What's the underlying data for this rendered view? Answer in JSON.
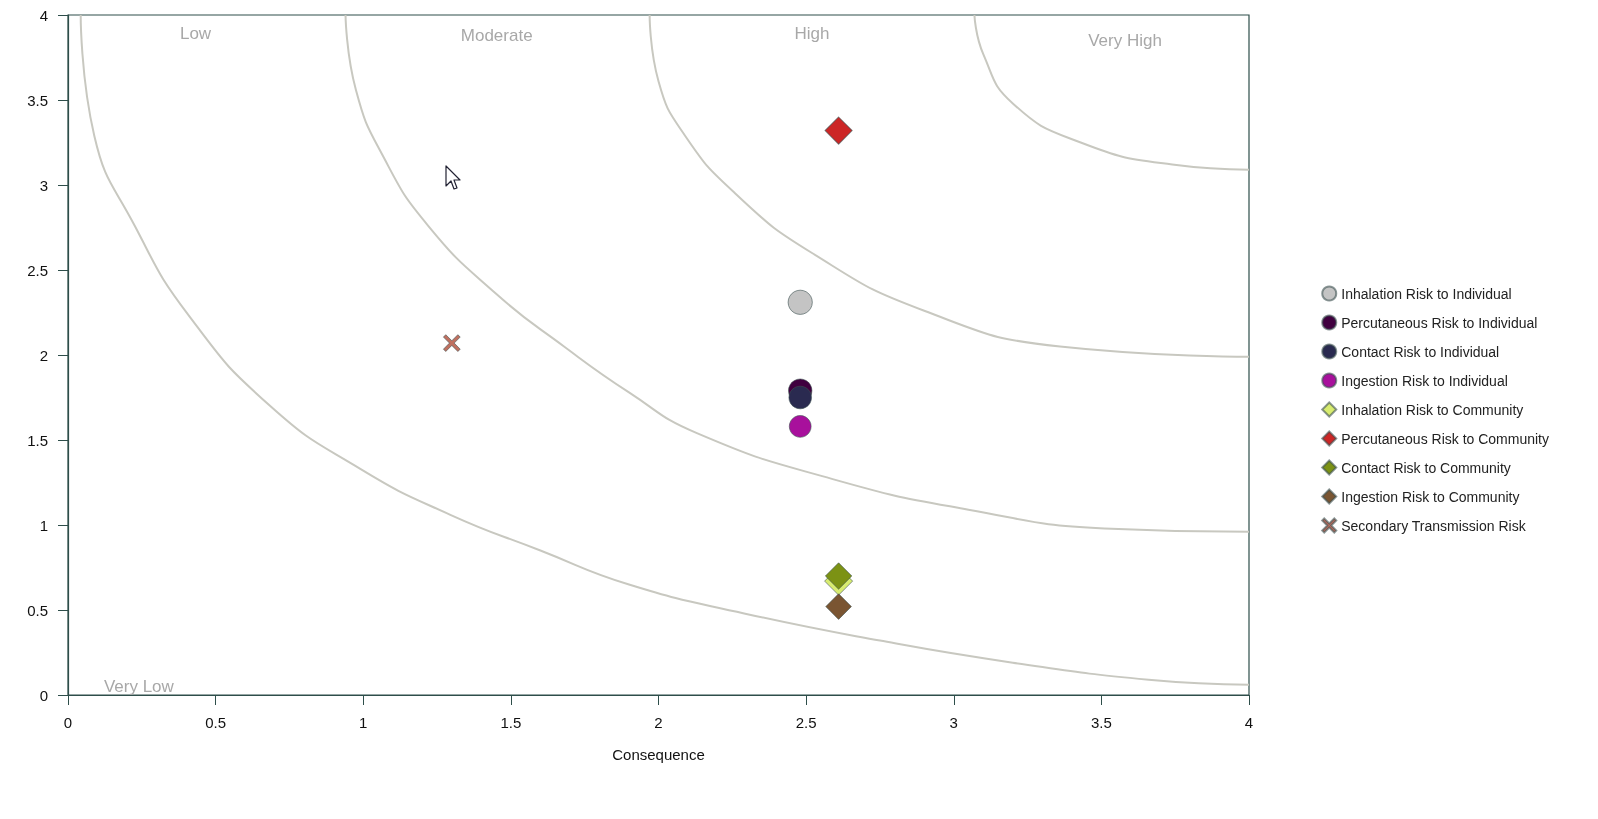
{
  "chart_data": {
    "type": "scatter",
    "xlabel": "Consequence",
    "xlim": [
      0,
      4
    ],
    "xticks": [
      0,
      0.5,
      1,
      1.5,
      2,
      2.5,
      3,
      3.5,
      4
    ],
    "ylim": [
      0,
      4
    ],
    "yticks": [
      0,
      0.5,
      1,
      1.5,
      2,
      2.5,
      3,
      3.5,
      4
    ],
    "grid": false,
    "legend": "right",
    "annotations": [
      "Low",
      "Moderate",
      "High",
      "Very High",
      "Very Low"
    ],
    "series": [
      {
        "type": "line",
        "color": "#c8c8c0",
        "marker": "none",
        "x": [
          0.043,
          0.089,
          0.226,
          0.41,
          0.685,
          0.99,
          1.295,
          1.6,
          1.9,
          2.29,
          2.75,
          3.2,
          3.66,
          4
        ],
        "values": [
          4,
          3.29,
          2.76,
          2.23,
          1.7,
          1.33,
          1.06,
          0.85,
          0.65,
          0.48,
          0.32,
          0.19,
          0.09,
          0.06
        ]
      },
      {
        "type": "line",
        "color": "#c8c8c0",
        "marker": "none",
        "x": [
          0.94,
          0.975,
          1.07,
          1.22,
          1.45,
          1.68,
          1.9,
          2.13,
          2.59,
          3.05,
          3.51,
          4
        ],
        "values": [
          4,
          3.56,
          3.16,
          2.76,
          2.36,
          2.05,
          1.78,
          1.54,
          1.27,
          1.09,
          0.98,
          0.96
        ]
      },
      {
        "type": "line",
        "color": "#c8c8c0",
        "marker": "none",
        "x": [
          1.97,
          2.0,
          2.09,
          2.26,
          2.52,
          2.9,
          3.36,
          4
        ],
        "values": [
          4,
          3.61,
          3.29,
          2.95,
          2.6,
          2.26,
          2.05,
          1.99
        ]
      },
      {
        "type": "line",
        "color": "#c8c8c0",
        "marker": "none",
        "x": [
          3.07,
          3.1,
          3.2,
          3.43,
          3.74,
          4
        ],
        "values": [
          4,
          3.77,
          3.48,
          3.25,
          3.12,
          3.09
        ]
      },
      {
        "name": "Inhalation Risk to Individual",
        "marker": "circle",
        "color": "#c4c4c4",
        "x": [
          2.48
        ],
        "values": [
          2.31
        ]
      },
      {
        "name": "Percutaneous Risk to Individual",
        "marker": "circle",
        "color": "#40003f",
        "x": [
          2.48
        ],
        "values": [
          1.79
        ]
      },
      {
        "name": "Contact Risk to Individual",
        "marker": "circle",
        "color": "#2a2a50",
        "x": [
          2.48
        ],
        "values": [
          1.75
        ]
      },
      {
        "name": "Ingestion Risk to Individual",
        "marker": "circle",
        "color": "#a8109c",
        "x": [
          2.48
        ],
        "values": [
          1.58
        ]
      },
      {
        "name": "Inhalation Risk to Community",
        "marker": "diamond",
        "color": "#d8ec70",
        "x": [
          2.61
        ],
        "values": [
          0.67
        ]
      },
      {
        "name": "Percutaneous Risk to Community",
        "marker": "diamond",
        "color": "#cc2626",
        "x": [
          2.61
        ],
        "values": [
          3.32
        ]
      },
      {
        "name": "Contact Risk to Community",
        "marker": "diamond",
        "color": "#7c9214",
        "x": [
          2.61
        ],
        "values": [
          0.7
        ]
      },
      {
        "name": "Ingestion Risk to Community",
        "marker": "diamond",
        "color": "#7a5532",
        "x": [
          2.61
        ],
        "values": [
          0.52
        ]
      },
      {
        "name": "Secondary Transmission Risk",
        "marker": "cross",
        "color": "#c07060",
        "x": [
          1.3
        ],
        "values": [
          2.07
        ]
      }
    ]
  }
}
